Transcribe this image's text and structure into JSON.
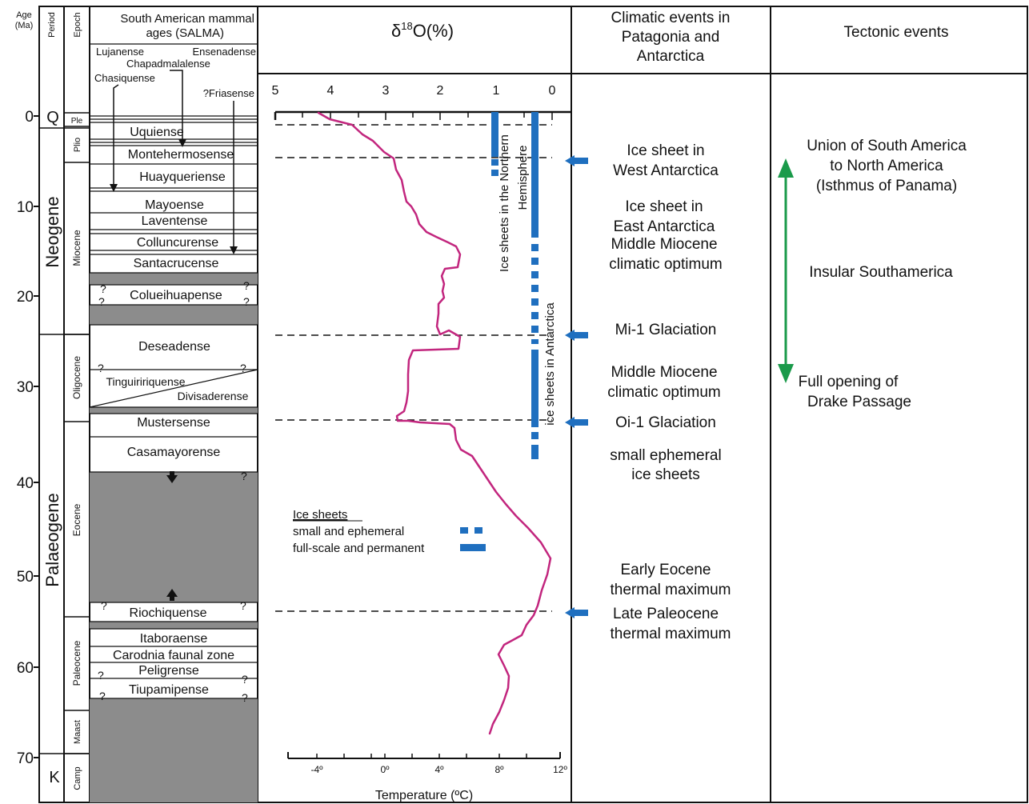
{
  "headers": {
    "age": [
      "Age",
      "(Ma)"
    ],
    "period": "Period",
    "epoch": "Epoch",
    "salma": [
      "South American mammal",
      "ages (SALMA)"
    ],
    "d18o": "δ18O(%)",
    "climatic": [
      "Climatic events in",
      "Patagonia and",
      "Antarctica"
    ],
    "tectonic": "Tectonic events"
  },
  "age_ticks": [
    "0",
    "10",
    "20",
    "30",
    "40",
    "50",
    "60",
    "70"
  ],
  "periods": [
    "Q",
    "Neogene",
    "Palaeogene",
    "K"
  ],
  "epochs": [
    "Ple",
    "Plio",
    "Miocene",
    "Oligocene",
    "Eocene",
    "Paleocene",
    "Maast",
    "Camp"
  ],
  "salma_top_labels": [
    "Lujanense",
    "Ensenadense",
    "Chapadmalalense",
    "Chasiquense",
    "?Friasense"
  ],
  "salma_ages": [
    "Uquiense",
    "Montehermosense",
    "Huayqueriense",
    "Mayoense",
    "Laventense",
    "Colluncurense",
    "Santacrucense",
    "Colueihuapense",
    "Deseadense",
    "Tinguiririquense",
    "Divisaderense",
    "Mustersense",
    "Casamayorense",
    "Riochiquense",
    "Itaboraense",
    "Carodnia faunal zone",
    "Peligrense",
    "Tiupamipense"
  ],
  "isotope_axis": {
    "ticks": [
      "5",
      "4",
      "3",
      "2",
      "1",
      "0"
    ],
    "temp_ticks": [
      "-4º",
      "0º",
      "4º",
      "8º",
      "12º"
    ],
    "temp_label": "Temperature (ºC)"
  },
  "ice_sheet_labels": {
    "northern": [
      "Ice sheets in the Northern",
      "Hemisphere"
    ],
    "antarctica": "ice sheets in Antarctica"
  },
  "legend": {
    "title": "Ice sheets",
    "items": [
      "small and ephemeral",
      "full-scale and permanent"
    ]
  },
  "climatic_events": [
    [
      "Ice sheet in",
      "West Antarctica"
    ],
    [
      "Ice sheet in",
      "East Antarctica"
    ],
    [
      "Middle Miocene",
      "climatic optimum"
    ],
    [
      "Mi-1 Glaciation"
    ],
    [
      "Middle Miocene",
      "climatic optimum"
    ],
    [
      "Oi-1 Glaciation"
    ],
    [
      "small ephemeral",
      "ice sheets"
    ],
    [
      "Early Eocene",
      "thermal maximum"
    ],
    [
      "Late Paleocene",
      "thermal maximum"
    ]
  ],
  "tectonic_events": [
    [
      "Union of South America",
      "to North America",
      "(Isthmus of Panama)"
    ],
    [
      "Insular Southamerica"
    ],
    [
      "Full opening of",
      "Drake Passage"
    ]
  ],
  "colors": {
    "curve": "#c2267e",
    "ice": "#1f6fbf",
    "arrow_green": "#1a9a4a",
    "gray": "#8c8c8c",
    "line": "#111111"
  }
}
